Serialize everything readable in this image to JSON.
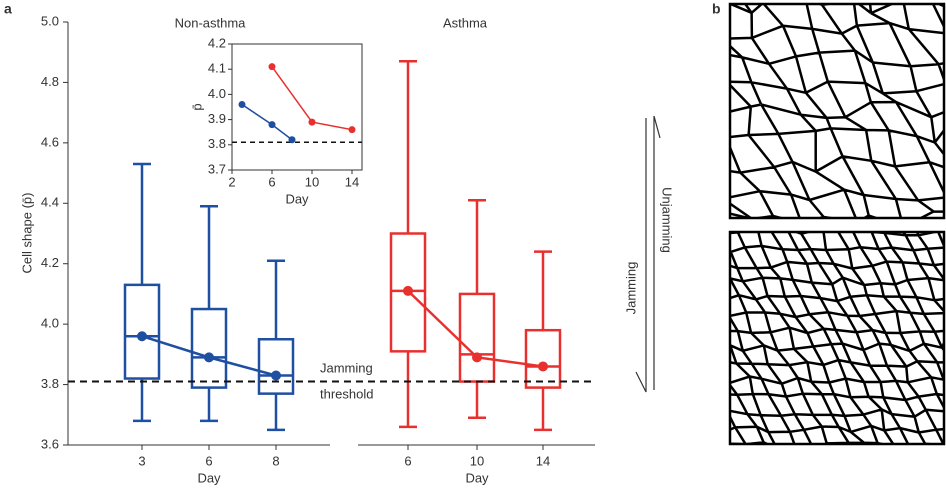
{
  "chart_data": [
    {
      "type": "box",
      "panel_label": "a",
      "ylabel": "Cell shape (p̄)",
      "ylim": [
        3.6,
        5.0
      ],
      "yticks": [
        3.6,
        3.8,
        {
          "value": 4,
          "label": "4.0"
        },
        4.2,
        4.4,
        4.6,
        4.8,
        {
          "value": 5,
          "label": "5.0"
        }
      ],
      "threshold": 3.81,
      "threshold_label": [
        "Jamming",
        "threshold"
      ],
      "arrow_labels": [
        "Jamming",
        "Unjamming"
      ],
      "groups": [
        {
          "name": "Non-asthma",
          "color": "#1f4fa0",
          "xlabel": "Day",
          "categories": [
            "3",
            "6",
            "8"
          ],
          "whisker_low": [
            3.68,
            3.68,
            3.65
          ],
          "q1": [
            3.82,
            3.79,
            3.77
          ],
          "median": [
            3.96,
            3.89,
            3.83
          ],
          "q3": [
            4.13,
            4.05,
            3.95
          ],
          "whisker_high": [
            4.53,
            4.39,
            4.21
          ],
          "mean": [
            3.96,
            3.89,
            3.83
          ]
        },
        {
          "name": "Asthma",
          "color": "#e8312f",
          "xlabel": "Day",
          "categories": [
            "6",
            "10",
            "14"
          ],
          "whisker_low": [
            3.66,
            3.69,
            3.65
          ],
          "q1": [
            3.91,
            3.81,
            3.79
          ],
          "median": [
            4.11,
            3.9,
            3.86
          ],
          "q3": [
            4.3,
            4.1,
            3.98
          ],
          "whisker_high": [
            4.87,
            4.41,
            4.24
          ],
          "mean": [
            4.11,
            3.89,
            3.86
          ]
        }
      ]
    },
    {
      "type": "line",
      "ylabel": "p̄",
      "xlabel": "Day",
      "xlim": [
        2,
        15
      ],
      "xticks": [
        2,
        6,
        10,
        14
      ],
      "ylim": [
        3.7,
        4.2
      ],
      "yticks": [
        3.7,
        3.8,
        3.9,
        {
          "value": 4,
          "label": "4.0"
        },
        4.1,
        4.2
      ],
      "threshold": 3.81,
      "series": [
        {
          "name": "Non-asthma",
          "color": "#1f4fa0",
          "x": [
            3,
            6,
            8
          ],
          "values": [
            3.96,
            3.88,
            3.82
          ]
        },
        {
          "name": "Asthma",
          "color": "#e8312f",
          "x": [
            6,
            10,
            14
          ],
          "values": [
            4.11,
            3.89,
            3.86
          ]
        }
      ]
    }
  ],
  "panel_b": {
    "label": "b"
  }
}
